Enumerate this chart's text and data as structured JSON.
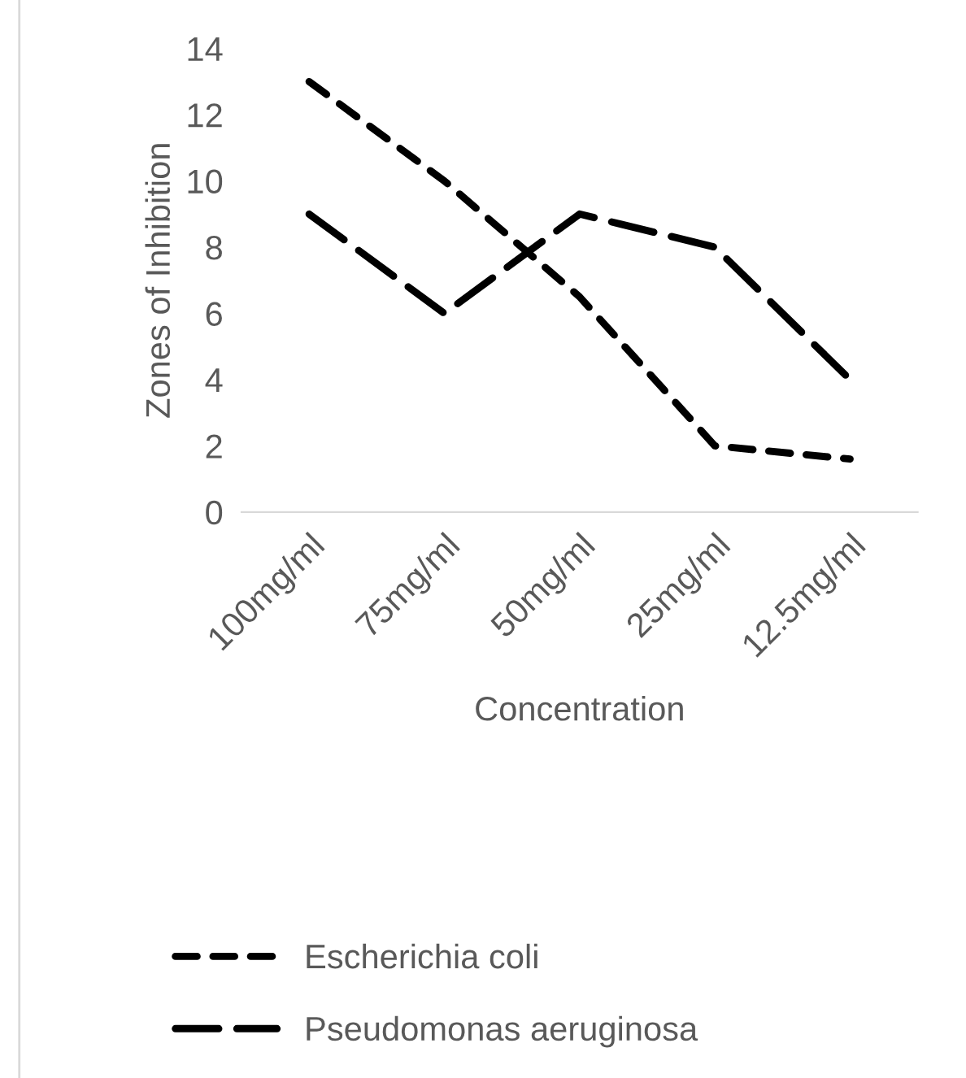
{
  "chart_data": {
    "type": "line",
    "xlabel": "Concentration",
    "ylabel": "Zones of Inhibition",
    "categories": [
      "100mg/ml",
      "75mg/ml",
      "50mg/ml",
      "25mg/ml",
      "12.5mg/ml"
    ],
    "series": [
      {
        "name": "Escherichia coli",
        "color": "#000000",
        "line_style": "dashed",
        "values": [
          13,
          10,
          6.5,
          2,
          1.6
        ]
      },
      {
        "name": "Pseudomonas aeruginosa",
        "color": "#000000",
        "line_style": "longdash",
        "values": [
          9,
          6,
          9,
          8,
          4
        ]
      }
    ],
    "ylim": [
      0,
      14
    ],
    "yticks": [
      0,
      2,
      4,
      6,
      8,
      10,
      12,
      14
    ],
    "grid": false,
    "legend": "bottom",
    "marker": "none"
  }
}
